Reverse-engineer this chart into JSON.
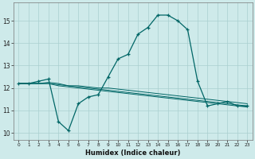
{
  "xlabel": "Humidex (Indice chaleur)",
  "ylabel": "",
  "background_color": "#ceeaea",
  "line_color": "#006666",
  "grid_color": "#aacfcf",
  "xlim": [
    -0.5,
    23.5
  ],
  "ylim": [
    9.7,
    15.8
  ],
  "yticks": [
    10,
    11,
    12,
    13,
    14,
    15
  ],
  "xticks": [
    0,
    1,
    2,
    3,
    4,
    5,
    6,
    7,
    8,
    9,
    10,
    11,
    12,
    13,
    14,
    15,
    16,
    17,
    18,
    19,
    20,
    21,
    22,
    23
  ],
  "line1_x": [
    0,
    1,
    2,
    3,
    4,
    5,
    6,
    7,
    8,
    9,
    10,
    11,
    12,
    13,
    14,
    15,
    16,
    17,
    18,
    19,
    20,
    21,
    22,
    23
  ],
  "line1_y": [
    12.2,
    12.2,
    12.3,
    12.4,
    10.5,
    10.1,
    11.3,
    11.6,
    11.7,
    12.5,
    13.3,
    13.5,
    14.4,
    14.7,
    15.25,
    15.25,
    15.0,
    14.6,
    12.3,
    11.2,
    11.3,
    11.4,
    11.2,
    11.2
  ],
  "line2_x": [
    0,
    1,
    2,
    3,
    4,
    5,
    6,
    7,
    8,
    9,
    10,
    11,
    12,
    13,
    14,
    15,
    16,
    17,
    18,
    19,
    20,
    21,
    22,
    23
  ],
  "line2_y": [
    12.2,
    12.2,
    12.2,
    12.25,
    12.2,
    12.1,
    12.1,
    12.05,
    12.0,
    12.0,
    11.95,
    11.9,
    11.85,
    11.8,
    11.75,
    11.7,
    11.65,
    11.6,
    11.55,
    11.5,
    11.45,
    11.4,
    11.35,
    11.3
  ],
  "line3_x": [
    0,
    1,
    2,
    3,
    4,
    5,
    6,
    7,
    8,
    9,
    10,
    11,
    12,
    13,
    14,
    15,
    16,
    17,
    18,
    19,
    20,
    21,
    22,
    23
  ],
  "line3_y": [
    12.2,
    12.2,
    12.2,
    12.2,
    12.15,
    12.1,
    12.05,
    12.0,
    11.95,
    11.9,
    11.85,
    11.8,
    11.75,
    11.7,
    11.65,
    11.6,
    11.55,
    11.5,
    11.45,
    11.4,
    11.35,
    11.3,
    11.25,
    11.2
  ],
  "line4_x": [
    0,
    1,
    2,
    3,
    4,
    5,
    6,
    7,
    8,
    9,
    10,
    11,
    12,
    13,
    14,
    15,
    16,
    17,
    18,
    19,
    20,
    21,
    22,
    23
  ],
  "line4_y": [
    12.2,
    12.2,
    12.2,
    12.2,
    12.1,
    12.05,
    12.0,
    11.95,
    11.9,
    11.85,
    11.8,
    11.75,
    11.7,
    11.65,
    11.6,
    11.55,
    11.5,
    11.45,
    11.4,
    11.35,
    11.3,
    11.25,
    11.2,
    11.15
  ]
}
